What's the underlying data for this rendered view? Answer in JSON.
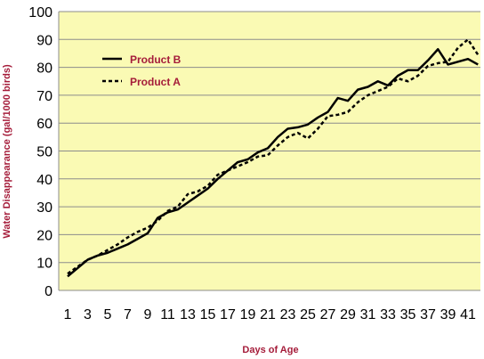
{
  "chart_data": {
    "type": "line",
    "xlabel": "Days of Age",
    "ylabel": "Water Disappearance (gal/1000 birds)",
    "ylim": [
      0,
      100
    ],
    "xlim": [
      1,
      42
    ],
    "y_ticks": [
      "0",
      "10",
      "20",
      "30",
      "40",
      "50",
      "60",
      "70",
      "80",
      "90",
      "100"
    ],
    "x_ticks": [
      "1",
      "3",
      "5",
      "7",
      "9",
      "11",
      "13",
      "15",
      "17",
      "19",
      "21",
      "23",
      "25",
      "27",
      "29",
      "31",
      "33",
      "35",
      "37",
      "39",
      "41"
    ],
    "grid": "horizontal",
    "legend": "top-left",
    "plot_background": "#fafab4",
    "series": [
      {
        "name": "Product B",
        "style": "solid",
        "color": "#000000",
        "x": [
          1,
          2,
          3,
          4,
          5,
          6,
          7,
          8,
          9,
          10,
          11,
          12,
          13,
          14,
          15,
          16,
          17,
          18,
          19,
          20,
          21,
          22,
          23,
          24,
          25,
          26,
          27,
          28,
          29,
          30,
          31,
          32,
          33,
          34,
          35,
          36,
          37,
          38,
          39,
          40,
          41,
          42
        ],
        "values": [
          5,
          8,
          11,
          12.5,
          13.5,
          15,
          16.5,
          18.5,
          20.5,
          26,
          28,
          29,
          31.5,
          34,
          36.5,
          40,
          43,
          46,
          47,
          49.5,
          51,
          55,
          58,
          58.5,
          59.5,
          62,
          64,
          69,
          68,
          72,
          73,
          75,
          73.5,
          77,
          79,
          79,
          82.5,
          86.5,
          81,
          82,
          83,
          81
        ]
      },
      {
        "name": "Product A",
        "style": "dashed",
        "color": "#000000",
        "x": [
          1,
          2,
          3,
          4,
          5,
          6,
          7,
          8,
          9,
          10,
          11,
          12,
          13,
          14,
          15,
          16,
          17,
          18,
          19,
          20,
          21,
          22,
          23,
          24,
          25,
          26,
          27,
          28,
          29,
          30,
          31,
          32,
          33,
          34,
          35,
          36,
          37,
          38,
          39,
          40,
          41,
          42
        ],
        "values": [
          6,
          8.5,
          11,
          12.5,
          14.5,
          16.5,
          19,
          21,
          22.5,
          25,
          28.5,
          30,
          34.5,
          35.5,
          37.5,
          41.5,
          43,
          44.5,
          46,
          48,
          48.5,
          52,
          55,
          56.5,
          54.5,
          58,
          62.5,
          63,
          64,
          67.5,
          70,
          71.5,
          73,
          76,
          75,
          77,
          80.5,
          81.5,
          82,
          87,
          90,
          84.5
        ]
      }
    ]
  },
  "colors": {
    "plot_background": "#fafab4",
    "grid": "#8c8c8c",
    "axis_title": "#a51c3a",
    "legend_text": "#a51c3a",
    "line": "#000000"
  }
}
